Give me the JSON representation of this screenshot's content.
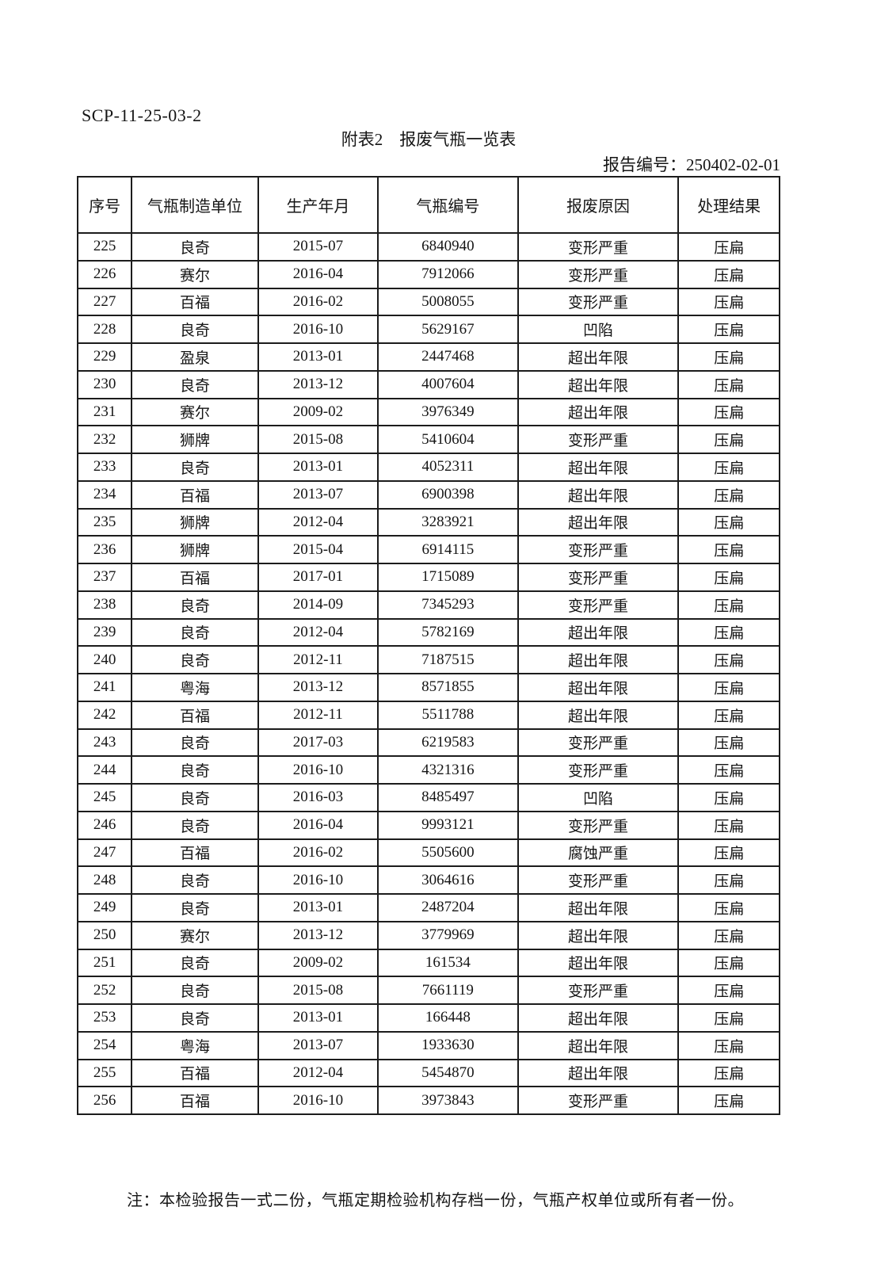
{
  "page": {
    "doc_code": "SCP-11-25-03-2",
    "title": "附表2　报废气瓶一览表",
    "report_no_label": "报告编号：",
    "report_no_value": "250402-02-01",
    "note": "注：本检验报告一式二份，气瓶定期检验机构存档一份，气瓶产权单位或所有者一份。"
  },
  "table": {
    "columns": [
      "序号",
      "气瓶制造单位",
      "生产年月",
      "气瓶编号",
      "报废原因",
      "处理结果"
    ],
    "column_widths_pct": [
      7.7,
      18.0,
      17.1,
      19.9,
      22.9,
      14.4
    ],
    "rows": [
      [
        "225",
        "良奇",
        "2015-07",
        "6840940",
        "变形严重",
        "压扁"
      ],
      [
        "226",
        "赛尔",
        "2016-04",
        "7912066",
        "变形严重",
        "压扁"
      ],
      [
        "227",
        "百福",
        "2016-02",
        "5008055",
        "变形严重",
        "压扁"
      ],
      [
        "228",
        "良奇",
        "2016-10",
        "5629167",
        "凹陷",
        "压扁"
      ],
      [
        "229",
        "盈泉",
        "2013-01",
        "2447468",
        "超出年限",
        "压扁"
      ],
      [
        "230",
        "良奇",
        "2013-12",
        "4007604",
        "超出年限",
        "压扁"
      ],
      [
        "231",
        "赛尔",
        "2009-02",
        "3976349",
        "超出年限",
        "压扁"
      ],
      [
        "232",
        "狮牌",
        "2015-08",
        "5410604",
        "变形严重",
        "压扁"
      ],
      [
        "233",
        "良奇",
        "2013-01",
        "4052311",
        "超出年限",
        "压扁"
      ],
      [
        "234",
        "百福",
        "2013-07",
        "6900398",
        "超出年限",
        "压扁"
      ],
      [
        "235",
        "狮牌",
        "2012-04",
        "3283921",
        "超出年限",
        "压扁"
      ],
      [
        "236",
        "狮牌",
        "2015-04",
        "6914115",
        "变形严重",
        "压扁"
      ],
      [
        "237",
        "百福",
        "2017-01",
        "1715089",
        "变形严重",
        "压扁"
      ],
      [
        "238",
        "良奇",
        "2014-09",
        "7345293",
        "变形严重",
        "压扁"
      ],
      [
        "239",
        "良奇",
        "2012-04",
        "5782169",
        "超出年限",
        "压扁"
      ],
      [
        "240",
        "良奇",
        "2012-11",
        "7187515",
        "超出年限",
        "压扁"
      ],
      [
        "241",
        "粤海",
        "2013-12",
        "8571855",
        "超出年限",
        "压扁"
      ],
      [
        "242",
        "百福",
        "2012-11",
        "5511788",
        "超出年限",
        "压扁"
      ],
      [
        "243",
        "良奇",
        "2017-03",
        "6219583",
        "变形严重",
        "压扁"
      ],
      [
        "244",
        "良奇",
        "2016-10",
        "4321316",
        "变形严重",
        "压扁"
      ],
      [
        "245",
        "良奇",
        "2016-03",
        "8485497",
        "凹陷",
        "压扁"
      ],
      [
        "246",
        "良奇",
        "2016-04",
        "9993121",
        "变形严重",
        "压扁"
      ],
      [
        "247",
        "百福",
        "2016-02",
        "5505600",
        "腐蚀严重",
        "压扁"
      ],
      [
        "248",
        "良奇",
        "2016-10",
        "3064616",
        "变形严重",
        "压扁"
      ],
      [
        "249",
        "良奇",
        "2013-01",
        "2487204",
        "超出年限",
        "压扁"
      ],
      [
        "250",
        "赛尔",
        "2013-12",
        "3779969",
        "超出年限",
        "压扁"
      ],
      [
        "251",
        "良奇",
        "2009-02",
        "161534",
        "超出年限",
        "压扁"
      ],
      [
        "252",
        "良奇",
        "2015-08",
        "7661119",
        "变形严重",
        "压扁"
      ],
      [
        "253",
        "良奇",
        "2013-01",
        "166448",
        "超出年限",
        "压扁"
      ],
      [
        "254",
        "粤海",
        "2013-07",
        "1933630",
        "超出年限",
        "压扁"
      ],
      [
        "255",
        "百福",
        "2012-04",
        "5454870",
        "超出年限",
        "压扁"
      ],
      [
        "256",
        "百福",
        "2016-10",
        "3973843",
        "变形严重",
        "压扁"
      ]
    ],
    "cell_names": [
      "index",
      "manufacturer",
      "production-date",
      "cylinder-no",
      "scrap-reason",
      "treatment-result"
    ]
  }
}
